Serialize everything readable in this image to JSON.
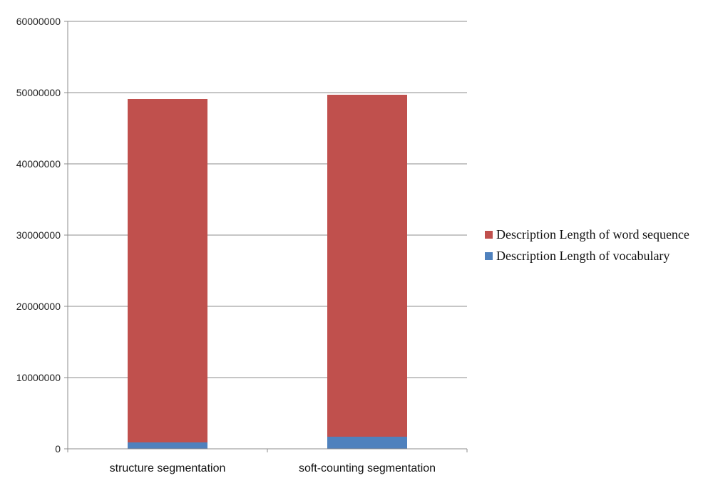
{
  "chart_data": {
    "type": "bar",
    "stacked": true,
    "categories": [
      "structure segmentation",
      "soft-counting segmentation"
    ],
    "series": [
      {
        "name": "Description Length of vocabulary",
        "color": "#4f81bd",
        "values": [
          900000,
          1700000
        ]
      },
      {
        "name": "Description Length of word sequence",
        "color": "#c0504d",
        "values": [
          48200000,
          48000000
        ]
      }
    ],
    "ylim": [
      0,
      60000000
    ],
    "yticks": [
      "0",
      "10000000",
      "20000000",
      "30000000",
      "40000000",
      "50000000",
      "60000000"
    ],
    "grid": true,
    "legend_position": "right",
    "legend_order": [
      "Description Length of word sequence",
      "Description Length of vocabulary"
    ],
    "title": "",
    "xlabel": "",
    "ylabel": ""
  }
}
